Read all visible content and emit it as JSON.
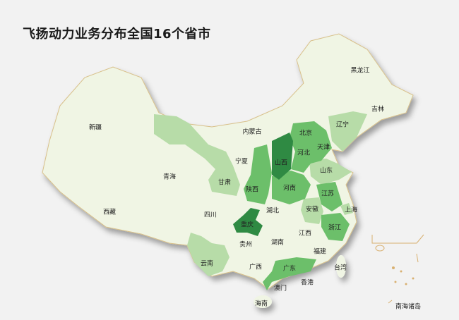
{
  "title": "飞扬动力业务分布全国16个省市",
  "colors": {
    "base": "#f0f5e4",
    "border": "#d8c08a",
    "light": "#b7dca8",
    "medium": "#6cbf6a",
    "dark": "#2f8a43",
    "background": "#f2f2f2"
  },
  "legend_levels": {
    "dark": [
      "山西",
      "重庆"
    ],
    "medium": [
      "北京",
      "天津",
      "河北",
      "陕西",
      "河南",
      "江苏",
      "浙江",
      "广东"
    ],
    "light": [
      "辽宁",
      "山东",
      "安徽",
      "上海",
      "甘肃",
      "云南"
    ]
  },
  "regions": [
    {
      "name": "新疆"
    },
    {
      "name": "西藏"
    },
    {
      "name": "青海"
    },
    {
      "name": "甘肃"
    },
    {
      "name": "宁夏"
    },
    {
      "name": "内蒙古"
    },
    {
      "name": "黑龙江"
    },
    {
      "name": "吉林"
    },
    {
      "name": "辽宁"
    },
    {
      "name": "北京"
    },
    {
      "name": "天津"
    },
    {
      "name": "河北"
    },
    {
      "name": "山西"
    },
    {
      "name": "山东"
    },
    {
      "name": "陕西"
    },
    {
      "name": "河南"
    },
    {
      "name": "江苏"
    },
    {
      "name": "安徽"
    },
    {
      "name": "上海"
    },
    {
      "name": "湖北"
    },
    {
      "name": "四川"
    },
    {
      "name": "重庆"
    },
    {
      "name": "浙江"
    },
    {
      "name": "江西"
    },
    {
      "name": "湖南"
    },
    {
      "name": "贵州"
    },
    {
      "name": "福建"
    },
    {
      "name": "云南"
    },
    {
      "name": "广西"
    },
    {
      "name": "广东"
    },
    {
      "name": "台湾"
    },
    {
      "name": "香港"
    },
    {
      "name": "澳门"
    },
    {
      "name": "海南"
    },
    {
      "name": "南海诸岛"
    }
  ]
}
